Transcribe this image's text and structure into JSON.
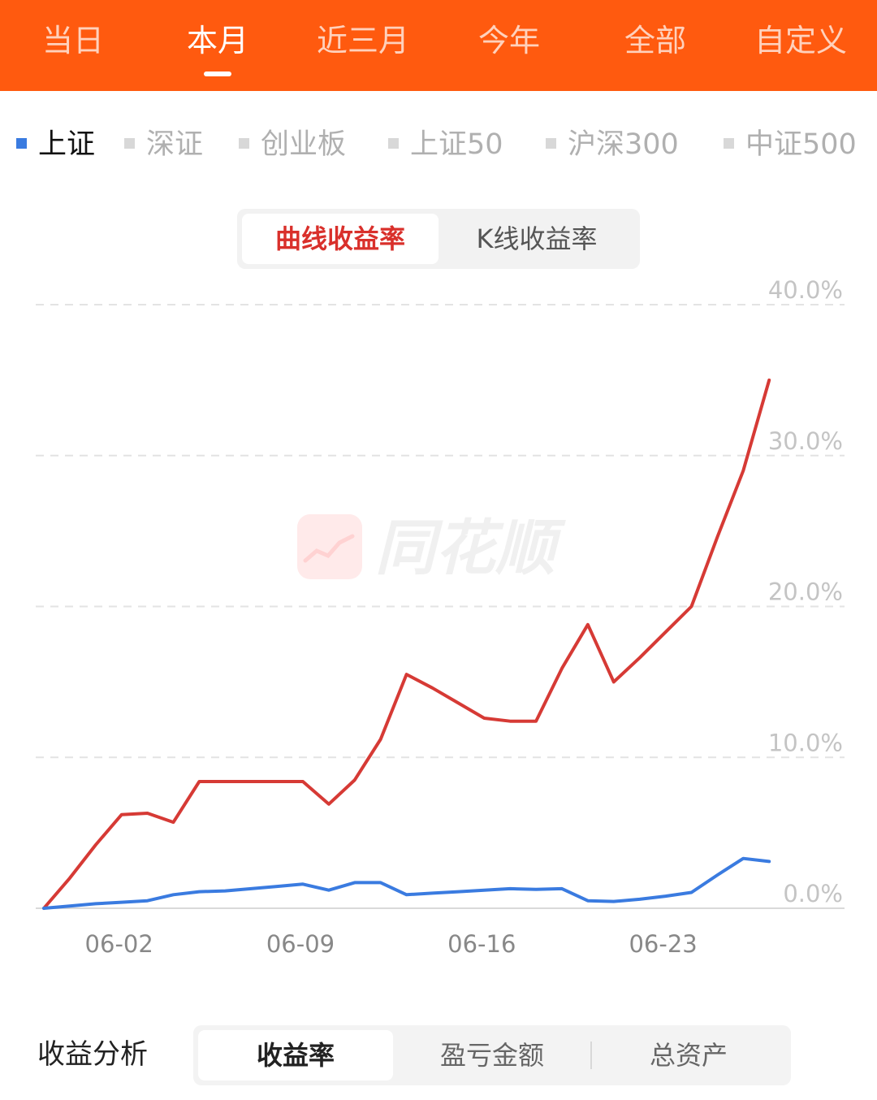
{
  "period_tabs": [
    {
      "label": "当日",
      "active": false
    },
    {
      "label": "本月",
      "active": true
    },
    {
      "label": "近三月",
      "active": false
    },
    {
      "label": "今年",
      "active": false
    },
    {
      "label": "全部",
      "active": false
    },
    {
      "label": "自定义",
      "active": false
    }
  ],
  "index_legend": [
    {
      "label": "上证",
      "active": true,
      "color": "#3a7be0"
    },
    {
      "label": "深证",
      "active": false,
      "color": "#d8d8d8"
    },
    {
      "label": "创业板",
      "active": false,
      "color": "#d8d8d8"
    },
    {
      "label": "上证50",
      "active": false,
      "color": "#d8d8d8"
    },
    {
      "label": "沪深300",
      "active": false,
      "color": "#d8d8d8"
    },
    {
      "label": "中证500",
      "active": false,
      "color": "#d8d8d8"
    }
  ],
  "chart_mode": {
    "curve_label": "曲线收益率",
    "kline_label": "K线收益率",
    "active": "curve"
  },
  "watermark": "同花顺",
  "chart_data": {
    "type": "line",
    "x_tick_labels": [
      "06-02",
      "06-09",
      "06-16",
      "06-23"
    ],
    "y_tick_labels": [
      "0.0%",
      "10.0%",
      "20.0%",
      "30.0%",
      "40.0%"
    ],
    "ylim": [
      0,
      40
    ],
    "y_unit": "%",
    "grid": true,
    "gridline_style": "dashed",
    "series": [
      {
        "color": "#d63a35",
        "points": [
          [
            0,
            0
          ],
          [
            1,
            2
          ],
          [
            2,
            4.2
          ],
          [
            3,
            6.2
          ],
          [
            4,
            6.3
          ],
          [
            5,
            5.7
          ],
          [
            6,
            8.4
          ],
          [
            7,
            8.4
          ],
          [
            8,
            8.4
          ],
          [
            9,
            8.4
          ],
          [
            10,
            8.4
          ],
          [
            11,
            6.9
          ],
          [
            12,
            8.5
          ],
          [
            13,
            11.2
          ],
          [
            14,
            15.5
          ],
          [
            15,
            14.6
          ],
          [
            16,
            13.6
          ],
          [
            17,
            12.6
          ],
          [
            18,
            12.4
          ],
          [
            19,
            12.4
          ],
          [
            20,
            15.9
          ],
          [
            21,
            18.8
          ],
          [
            22,
            15
          ],
          [
            23,
            16.6
          ],
          [
            24,
            18.3
          ],
          [
            25,
            20
          ],
          [
            26,
            24.6
          ],
          [
            27,
            29
          ],
          [
            28,
            35
          ]
        ]
      },
      {
        "color": "#3a7be0",
        "points": [
          [
            0,
            0
          ],
          [
            1,
            0.15
          ],
          [
            2,
            0.3
          ],
          [
            3,
            0.4
          ],
          [
            4,
            0.5
          ],
          [
            5,
            0.9
          ],
          [
            6,
            1.1
          ],
          [
            7,
            1.15
          ],
          [
            8,
            1.3
          ],
          [
            9,
            1.45
          ],
          [
            10,
            1.6
          ],
          [
            11,
            1.2
          ],
          [
            12,
            1.7
          ],
          [
            13,
            1.7
          ],
          [
            14,
            0.9
          ],
          [
            15,
            1
          ],
          [
            16,
            1.1
          ],
          [
            17,
            1.2
          ],
          [
            18,
            1.3
          ],
          [
            19,
            1.25
          ],
          [
            20,
            1.3
          ],
          [
            21,
            0.5
          ],
          [
            22,
            0.45
          ],
          [
            23,
            0.6
          ],
          [
            24,
            0.8
          ],
          [
            25,
            1.05
          ],
          [
            26,
            2.2
          ],
          [
            27,
            3.3
          ],
          [
            28,
            3.1
          ]
        ]
      }
    ]
  },
  "analysis": {
    "label": "收益分析",
    "tabs": [
      {
        "label": "收益率",
        "active": true
      },
      {
        "label": "盈亏金额",
        "active": false
      },
      {
        "label": "总资产",
        "active": false
      }
    ]
  }
}
